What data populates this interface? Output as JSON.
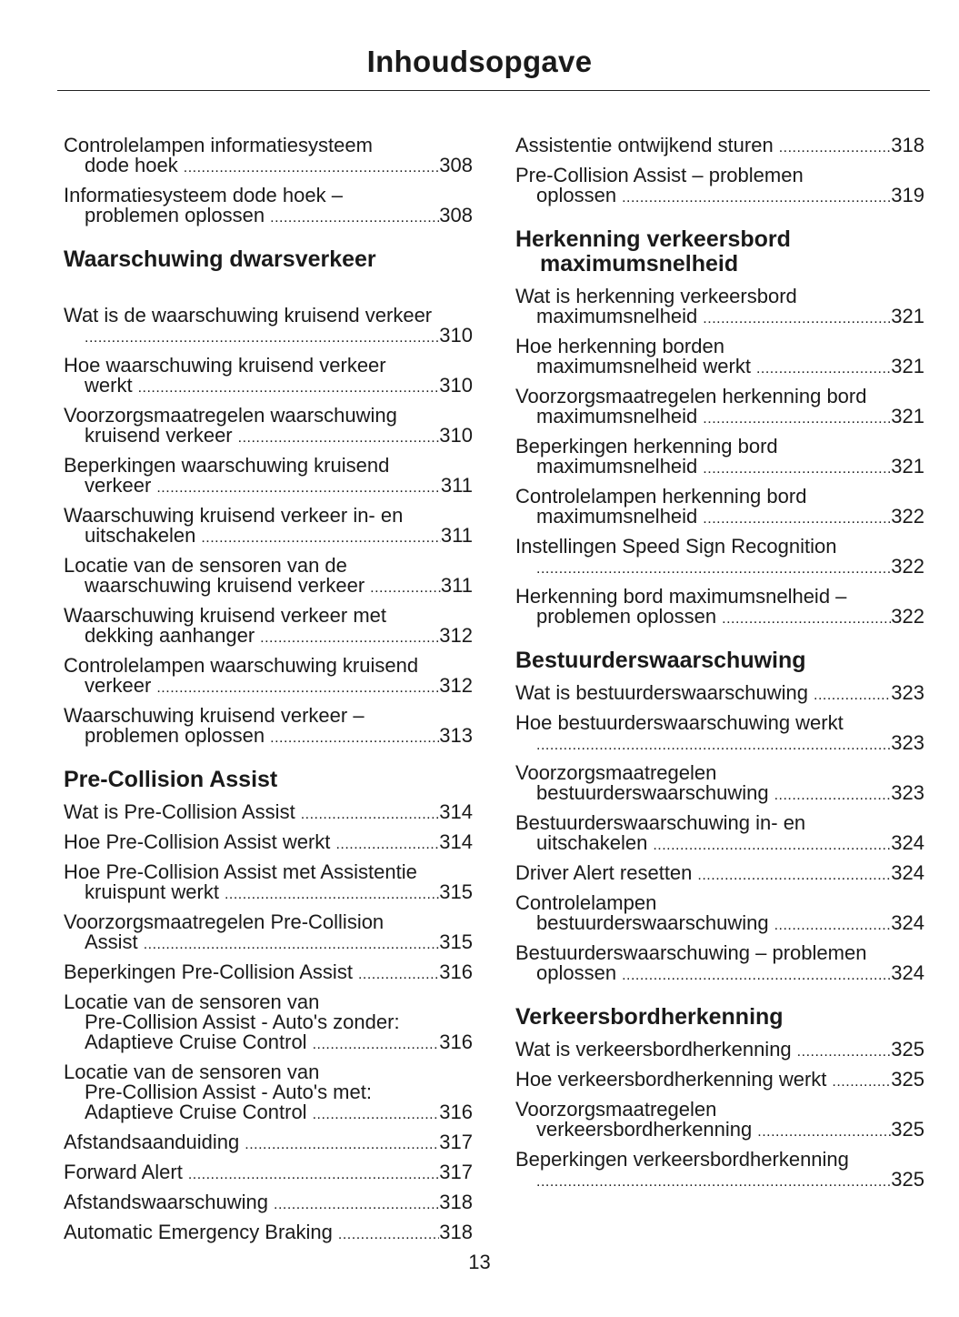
{
  "title": "Inhoudsopgave",
  "page_number": "13",
  "columns": [
    [
      {
        "type": "entry",
        "lines": [
          "Controlelampen informatiesysteem",
          "dode hoek"
        ],
        "page": "308"
      },
      {
        "type": "entry",
        "lines": [
          "Informatiesysteem dode hoek –",
          "problemen oplossen"
        ],
        "page": "308"
      },
      {
        "type": "heading",
        "lines": [
          "Waarschuwing dwarsverkeer"
        ],
        "wide": true
      },
      {
        "type": "entry",
        "lines": [
          "Wat is de waarschuwing kruisend verkeer",
          ""
        ],
        "page": "310"
      },
      {
        "type": "entry",
        "lines": [
          "Hoe waarschuwing kruisend verkeer",
          "werkt"
        ],
        "page": "310"
      },
      {
        "type": "entry",
        "lines": [
          "Voorzorgsmaatregelen waarschuwing",
          "kruisend verkeer"
        ],
        "page": "310"
      },
      {
        "type": "entry",
        "lines": [
          "Beperkingen waarschuwing kruisend",
          "verkeer"
        ],
        "page": "311"
      },
      {
        "type": "entry",
        "lines": [
          "Waarschuwing kruisend verkeer in- en",
          "uitschakelen"
        ],
        "page": "311"
      },
      {
        "type": "entry",
        "lines": [
          "Locatie van de sensoren van de",
          "waarschuwing kruisend verkeer"
        ],
        "page": "311"
      },
      {
        "type": "entry",
        "lines": [
          "Waarschuwing kruisend verkeer met",
          "dekking aanhanger"
        ],
        "page": "312"
      },
      {
        "type": "entry",
        "lines": [
          "Controlelampen waarschuwing kruisend",
          "verkeer"
        ],
        "page": "312"
      },
      {
        "type": "entry",
        "lines": [
          "Waarschuwing kruisend verkeer –",
          "problemen oplossen"
        ],
        "page": "313"
      },
      {
        "type": "heading",
        "lines": [
          "Pre-Collision Assist"
        ]
      },
      {
        "type": "entry",
        "lines": [
          "Wat is Pre-Collision Assist"
        ],
        "page": "314"
      },
      {
        "type": "entry",
        "lines": [
          "Hoe Pre-Collision Assist werkt"
        ],
        "page": "314"
      },
      {
        "type": "entry",
        "lines": [
          "Hoe Pre-Collision Assist met Assistentie",
          "kruispunt werkt"
        ],
        "page": "315"
      },
      {
        "type": "entry",
        "lines": [
          "Voorzorgsmaatregelen Pre-Collision",
          "Assist"
        ],
        "page": "315"
      },
      {
        "type": "entry",
        "lines": [
          "Beperkingen Pre-Collision Assist"
        ],
        "page": "316"
      },
      {
        "type": "entry",
        "lines": [
          "Locatie van de sensoren van",
          "Pre-Collision Assist - Auto's zonder:",
          "Adaptieve Cruise Control"
        ],
        "page": "316"
      },
      {
        "type": "entry",
        "lines": [
          "Locatie van de sensoren van",
          "Pre-Collision Assist - Auto's met:",
          "Adaptieve Cruise Control"
        ],
        "page": "316"
      },
      {
        "type": "entry",
        "lines": [
          "Afstandsaanduiding"
        ],
        "page": "317"
      },
      {
        "type": "entry",
        "lines": [
          "Forward Alert"
        ],
        "page": "317"
      },
      {
        "type": "entry",
        "lines": [
          "Afstandswaarschuwing"
        ],
        "page": "318"
      },
      {
        "type": "entry",
        "lines": [
          "Automatic Emergency Braking"
        ],
        "page": "318"
      }
    ],
    [
      {
        "type": "entry",
        "lines": [
          "Assistentie ontwijkend sturen"
        ],
        "page": "318"
      },
      {
        "type": "entry",
        "lines": [
          "Pre-Collision Assist – problemen",
          "oplossen"
        ],
        "page": "319"
      },
      {
        "type": "heading",
        "lines": [
          "Herkenning verkeersbord",
          "maximumsnelheid"
        ]
      },
      {
        "type": "entry",
        "lines": [
          "Wat is herkenning verkeersbord",
          "maximumsnelheid"
        ],
        "page": "321"
      },
      {
        "type": "entry",
        "lines": [
          "Hoe herkenning borden",
          "maximumsnelheid werkt"
        ],
        "page": "321"
      },
      {
        "type": "entry",
        "lines": [
          "Voorzorgsmaatregelen herkenning bord",
          "maximumsnelheid"
        ],
        "page": "321"
      },
      {
        "type": "entry",
        "lines": [
          "Beperkingen herkenning bord",
          "maximumsnelheid"
        ],
        "page": "321"
      },
      {
        "type": "entry",
        "lines": [
          "Controlelampen herkenning bord",
          "maximumsnelheid"
        ],
        "page": "322"
      },
      {
        "type": "entry",
        "lines": [
          "Instellingen Speed Sign Recognition",
          ""
        ],
        "page": "322"
      },
      {
        "type": "entry",
        "lines": [
          "Herkenning bord maximumsnelheid –",
          "problemen oplossen"
        ],
        "page": "322"
      },
      {
        "type": "heading",
        "lines": [
          "Bestuurderswaarschuwing"
        ]
      },
      {
        "type": "entry",
        "lines": [
          "Wat is bestuurderswaarschuwing"
        ],
        "page": "323"
      },
      {
        "type": "entry",
        "lines": [
          "Hoe bestuurderswaarschuwing werkt",
          ""
        ],
        "page": "323"
      },
      {
        "type": "entry",
        "lines": [
          "Voorzorgsmaatregelen",
          "bestuurderswaarschuwing"
        ],
        "page": "323"
      },
      {
        "type": "entry",
        "lines": [
          "Bestuurderswaarschuwing in- en",
          "uitschakelen"
        ],
        "page": "324"
      },
      {
        "type": "entry",
        "lines": [
          "Driver Alert resetten"
        ],
        "page": "324"
      },
      {
        "type": "entry",
        "lines": [
          "Controlelampen",
          "bestuurderswaarschuwing"
        ],
        "page": "324"
      },
      {
        "type": "entry",
        "lines": [
          "Bestuurderswaarschuwing – problemen",
          "oplossen"
        ],
        "page": "324"
      },
      {
        "type": "heading",
        "lines": [
          "Verkeersbordherkenning"
        ]
      },
      {
        "type": "entry",
        "lines": [
          "Wat is verkeersbordherkenning"
        ],
        "page": "325"
      },
      {
        "type": "entry",
        "lines": [
          "Hoe verkeersbordherkenning werkt"
        ],
        "page": "325"
      },
      {
        "type": "entry",
        "lines": [
          "Voorzorgsmaatregelen",
          "verkeersbordherkenning"
        ],
        "page": "325"
      },
      {
        "type": "entry",
        "lines": [
          "Beperkingen verkeersbordherkenning",
          ""
        ],
        "page": "325"
      }
    ]
  ]
}
